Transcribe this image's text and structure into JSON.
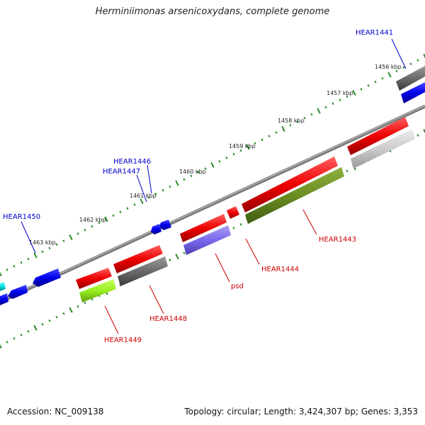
{
  "title": "Herminiimonas arsenicoxydans, complete genome",
  "footer": {
    "accession": "Accession: NC_009138",
    "summary": "Topology: circular; Length: 3,424,307 bp; Genes: 3,353"
  },
  "ticks": [
    "1456 kbp",
    "1457 kbp",
    "1458 kbp",
    "1459 kbp",
    "1460 kbp",
    "1461 kbp",
    "1462 kbp",
    "1463 kbp"
  ],
  "labels_top": [
    "HEAR1441",
    "HEAR1446",
    "HEAR1447",
    "HEAR1450"
  ],
  "labels_bottom": [
    "HEAR1443",
    "HEAR1444",
    "psd",
    "HEAR1448",
    "HEAR1449"
  ],
  "colors": {
    "blue_label": "#0000cc",
    "red_label": "#cc0000",
    "tick": "#2a8a2a",
    "backbone": "#8a8a8a"
  }
}
